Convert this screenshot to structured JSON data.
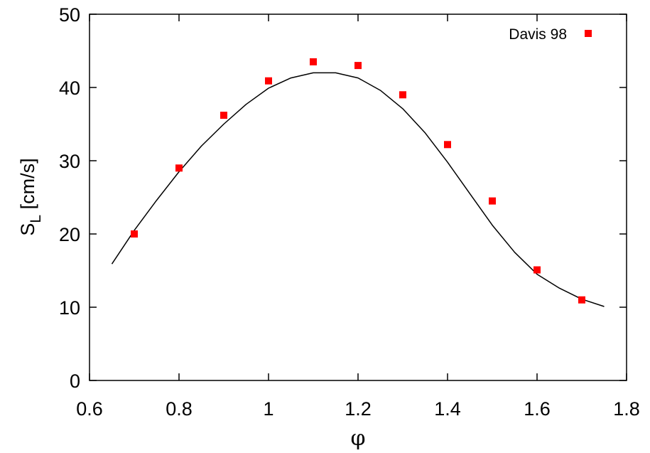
{
  "chart_data": {
    "type": "scatter",
    "xlabel": "φ",
    "ylabel_main": "S",
    "ylabel_sub": "L",
    "ylabel_unit": " [cm/s]",
    "xlim": [
      0.6,
      1.8
    ],
    "ylim": [
      0,
      50
    ],
    "xticks": [
      0.6,
      0.8,
      1.0,
      1.2,
      1.4,
      1.6,
      1.8
    ],
    "xtick_labels": [
      "0.6",
      "0.8",
      "1",
      "1.2",
      "1.4",
      "1.6",
      "1.8"
    ],
    "yticks": [
      0,
      10,
      20,
      30,
      40,
      50
    ],
    "ytick_labels": [
      "0",
      "10",
      "20",
      "30",
      "40",
      "50"
    ],
    "grid": false,
    "legend_position": "top-right",
    "series": [
      {
        "type": "scatter",
        "name": "Davis 98",
        "color": "#ff0000",
        "marker": "square",
        "x": [
          0.7,
          0.8,
          0.9,
          1.0,
          1.1,
          1.2,
          1.3,
          1.4,
          1.5,
          1.6,
          1.7
        ],
        "y": [
          20.0,
          29.0,
          36.2,
          40.9,
          43.5,
          43.0,
          39.0,
          32.2,
          24.5,
          15.1,
          11.0
        ]
      },
      {
        "type": "line",
        "color": "#000000",
        "x": [
          0.65,
          0.7,
          0.75,
          0.8,
          0.85,
          0.9,
          0.95,
          1.0,
          1.05,
          1.1,
          1.15,
          1.2,
          1.25,
          1.3,
          1.35,
          1.4,
          1.45,
          1.5,
          1.55,
          1.6,
          1.65,
          1.7,
          1.75
        ],
        "y": [
          15.9,
          20.5,
          24.6,
          28.5,
          32.0,
          35.0,
          37.7,
          39.9,
          41.3,
          42.0,
          42.0,
          41.3,
          39.6,
          37.1,
          33.8,
          29.8,
          25.5,
          21.2,
          17.5,
          14.5,
          12.6,
          11.1,
          10.1
        ]
      }
    ]
  }
}
